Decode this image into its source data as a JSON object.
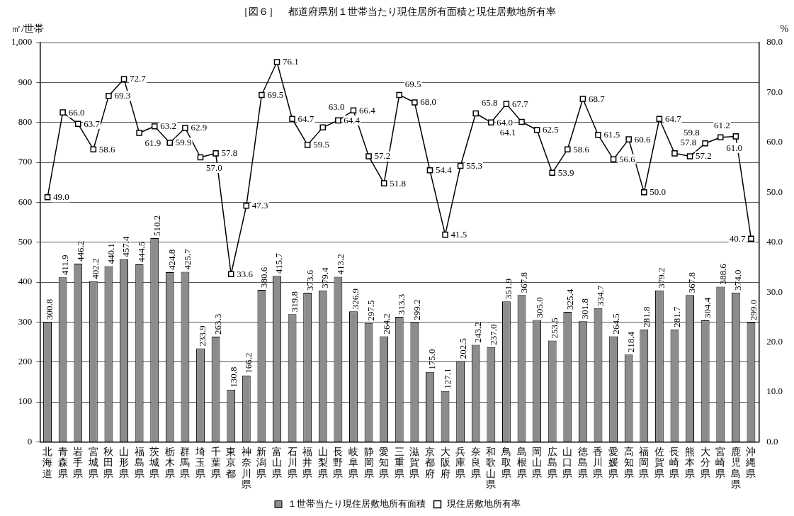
{
  "chart_data": {
    "type": "bar",
    "title": "［図６］　都道府県別１世帯当たり現住居所有面積と現住居敷地所有率",
    "ylabel": "㎡/世帯",
    "y2label": "%",
    "categories": [
      "北海道",
      "青森県",
      "岩手県",
      "宮城県",
      "秋田県",
      "山形県",
      "福島県",
      "茨城県",
      "栃木県",
      "群馬県",
      "埼玉県",
      "千葉県",
      "東京都",
      "神奈川県",
      "新潟県",
      "富山県",
      "石川県",
      "福井県",
      "山梨県",
      "長野県",
      "岐阜県",
      "静岡県",
      "愛知県",
      "三重県",
      "滋賀県",
      "京都府",
      "大阪府",
      "兵庫県",
      "奈良県",
      "和歌山県",
      "鳥取県",
      "島根県",
      "岡山県",
      "広島県",
      "山口県",
      "徳島県",
      "香川県",
      "愛媛県",
      "高知県",
      "福岡県",
      "佐賀県",
      "長崎県",
      "熊本県",
      "大分県",
      "宮崎県",
      "鹿児島県",
      "沖縄県"
    ],
    "series": [
      {
        "name": "１世帯当たり現住居敷地所有面積",
        "color": "#8c8c8c",
        "values": [
          300.8,
          411.9,
          446.2,
          402.2,
          440.1,
          457.4,
          444.5,
          510.2,
          424.8,
          425.7,
          233.9,
          263.3,
          130.8,
          166.2,
          380.6,
          415.7,
          319.8,
          373.6,
          379.4,
          413.2,
          326.9,
          297.5,
          264.2,
          313.3,
          299.2,
          175.0,
          127.1,
          202.5,
          243.2,
          237.0,
          351.9,
          367.8,
          305.0,
          253.5,
          325.4,
          301.8,
          334.7,
          264.5,
          218.4,
          281.8,
          379.2,
          281.7,
          367.8,
          304.4,
          388.6,
          374.0,
          299.0
        ],
        "value_labels": [
          "300.8",
          "411.9",
          "446.2",
          "402.2",
          "440.1",
          "457.4",
          "444.5",
          "510.2",
          "424.8",
          "425.7",
          "233.9",
          "263.3",
          "130.8",
          "166.2",
          "380.6",
          "415.7",
          "319.8",
          "373.6",
          "379.4",
          "413.2",
          "326.9",
          "297.5",
          "264.2",
          "313.3",
          "299.2",
          "175.0",
          "127.1",
          "202.5",
          "243.2",
          "237.0",
          "351.9",
          "367.8",
          "305.0",
          "253.5",
          "325.4",
          "301.8",
          "334.7",
          "264.5",
          "218.4",
          "281.8",
          "379.2",
          "281.7",
          "367.8",
          "304.4",
          "388.6",
          "374.0",
          "299.0"
        ]
      },
      {
        "name": "現住居敷地所有率",
        "type": "line",
        "axis": "y2",
        "color": "#000000",
        "values": [
          49.0,
          66.0,
          63.7,
          58.6,
          69.3,
          72.7,
          61.9,
          63.2,
          59.9,
          62.9,
          57.0,
          57.8,
          33.6,
          47.3,
          69.5,
          76.1,
          64.7,
          59.5,
          63.0,
          64.4,
          66.4,
          57.2,
          51.8,
          69.5,
          68.0,
          54.4,
          41.5,
          55.3,
          65.8,
          64.0,
          67.7,
          64.1,
          62.5,
          53.9,
          58.6,
          68.7,
          61.5,
          56.6,
          60.6,
          50.0,
          64.7,
          57.8,
          57.2,
          59.8,
          61.0,
          61.2,
          40.7
        ],
        "value_labels": [
          "49.0",
          "66.0",
          "63.7",
          "58.6",
          "69.3",
          "72.7",
          "61.9",
          "63.2",
          "59.9",
          "62.9",
          "57.0",
          "57.8",
          "33.6",
          "47.3",
          "69.5",
          "76.1",
          "64.7",
          "59.5",
          "63.0",
          "64.4",
          "66.4",
          "57.2",
          "51.8",
          "69.5",
          "68.0",
          "54.4",
          "41.5",
          "55.3",
          "65.8",
          "64.0",
          "67.7",
          "64.1",
          "62.5",
          "53.9",
          "58.6",
          "68.7",
          "61.5",
          "56.6",
          "60.6",
          "50.0",
          "64.7",
          "57.8",
          "57.2",
          "59.8",
          "61.0",
          "61.2",
          "40.7"
        ]
      }
    ],
    "ylim": [
      0,
      1000
    ],
    "yticks": [
      0,
      100,
      200,
      300,
      400,
      500,
      600,
      700,
      800,
      900,
      {
        "value": 1000,
        "label": "1,000"
      }
    ],
    "y2lim": [
      0,
      80
    ],
    "y2ticks": [
      {
        "value": 0,
        "label": "0.0"
      },
      {
        "value": 10,
        "label": "10.0"
      },
      {
        "value": 20,
        "label": "20.0"
      },
      {
        "value": 30,
        "label": "30.0"
      },
      {
        "value": 40,
        "label": "40.0"
      },
      {
        "value": 50,
        "label": "50.0"
      },
      {
        "value": 60,
        "label": "60.0"
      },
      {
        "value": 70,
        "label": "70.0"
      },
      {
        "value": 80,
        "label": "80.0"
      }
    ],
    "grid": "y",
    "legend": "bottom",
    "marker": "square",
    "line_style": "solid"
  }
}
